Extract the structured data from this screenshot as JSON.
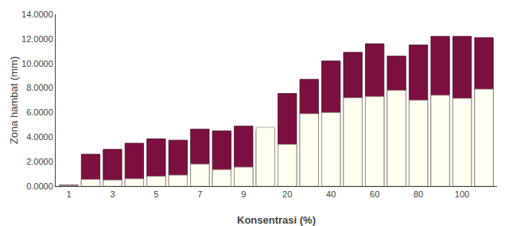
{
  "chart_data": {
    "type": "bar",
    "xlabel": "Konsentrasi (%)",
    "ylabel": "Zona hambat (mm)",
    "categories": [
      "1",
      null,
      "3",
      null,
      "5",
      null,
      "7",
      null,
      "9",
      null,
      "20",
      null,
      "40",
      null,
      "60",
      null,
      "80",
      null,
      "100",
      null
    ],
    "series": [
      {
        "color": "#7B1040",
        "values": [
          0.1,
          2.6,
          3.0,
          3.5,
          3.85,
          3.75,
          4.65,
          4.5,
          4.9,
          4.6,
          7.55,
          8.7,
          10.2,
          10.9,
          11.6,
          10.6,
          11.5,
          12.2,
          12.2,
          12.1
        ]
      },
      {
        "color": "#FFFFF0",
        "values": [
          0.05,
          0.55,
          0.5,
          0.6,
          0.8,
          0.9,
          1.8,
          1.35,
          1.55,
          4.8,
          3.4,
          5.9,
          6.0,
          7.2,
          7.3,
          7.8,
          7.0,
          7.4,
          7.15,
          7.9
        ]
      }
    ],
    "ylim": [
      0.0,
      14.0
    ],
    "yticks": [
      {
        "value": 0.0,
        "label": "0.0000"
      },
      {
        "value": 2.0,
        "label": "2.0000"
      },
      {
        "value": 4.0,
        "label": "4.0000"
      },
      {
        "value": 6.0,
        "label": "6.0000"
      },
      {
        "value": 8.0,
        "label": "8.0000"
      },
      {
        "value": 10.0,
        "label": "10.0000"
      },
      {
        "value": 12.0,
        "label": "12.0000"
      },
      {
        "value": 14.0,
        "label": "14.0000"
      }
    ],
    "grid": false
  }
}
